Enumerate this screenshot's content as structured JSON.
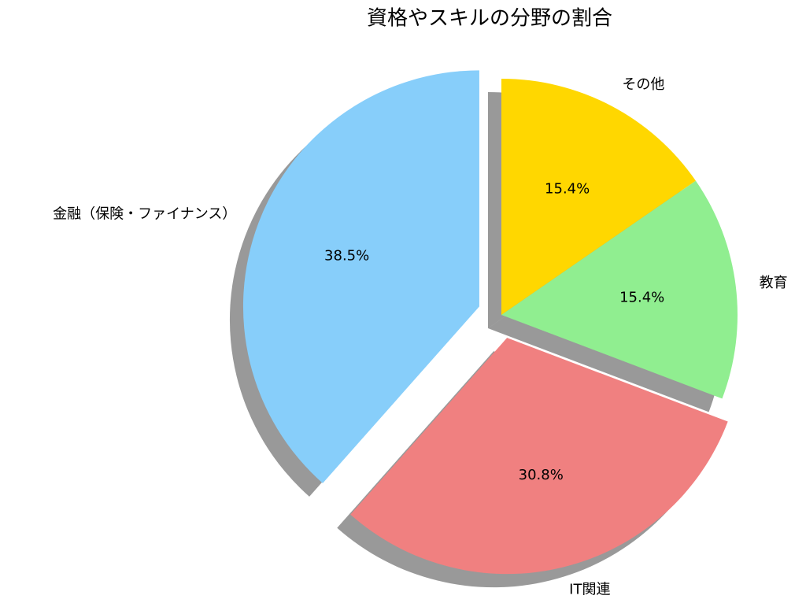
{
  "chart_data": {
    "type": "pie",
    "title": "資格やスキルの分野の割合",
    "categories": [
      "金融（保険・ファイナンス）",
      "IT関連",
      "教育",
      "その他"
    ],
    "values": [
      38.5,
      30.8,
      15.4,
      15.4
    ],
    "value_labels": [
      "38.5%",
      "30.8%",
      "15.4%",
      "15.4%"
    ],
    "colors": [
      "#87cefa",
      "#f08080",
      "#90ee90",
      "#ffd700"
    ],
    "shadow": true
  }
}
